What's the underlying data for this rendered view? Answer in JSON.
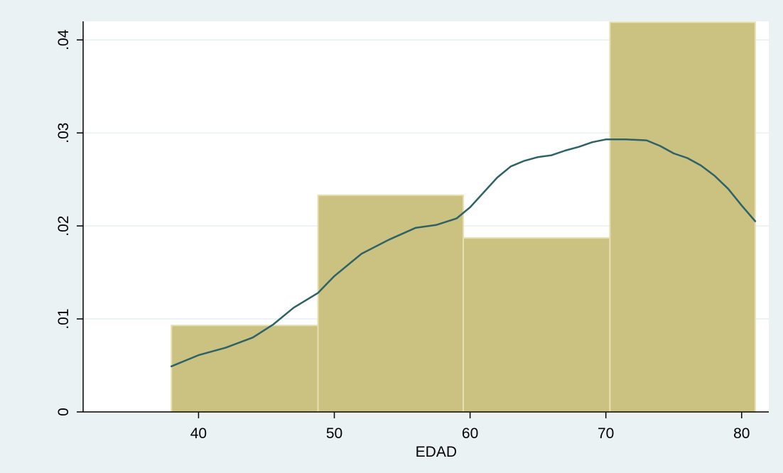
{
  "chart_data": {
    "type": "bar",
    "title": "",
    "xlabel": "EDAD",
    "ylabel": "",
    "xlim": [
      31.5,
      82
    ],
    "ylim": [
      0,
      0.042
    ],
    "grid": true,
    "colors": {
      "background": "#eaf2f3",
      "plot_area": "#ffffff",
      "bar_fill": "#cbc282",
      "bar_edge": "#e6dfb3",
      "density_line": "#2e6266",
      "grid": "#e6eff1"
    },
    "x_ticks": [
      {
        "value": 40,
        "label": "40"
      },
      {
        "value": 50,
        "label": "50"
      },
      {
        "value": 60,
        "label": "60"
      },
      {
        "value": 70,
        "label": "70"
      },
      {
        "value": 80,
        "label": "80"
      }
    ],
    "y_ticks": [
      {
        "value": 0,
        "label": "0"
      },
      {
        "value": 0.01,
        "label": ".01"
      },
      {
        "value": 0.02,
        "label": ".02"
      },
      {
        "value": 0.03,
        "label": ".03"
      },
      {
        "value": 0.04,
        "label": ".04"
      }
    ],
    "bins": [
      {
        "start": 38.0,
        "end": 48.8,
        "density": 0.0093
      },
      {
        "start": 48.8,
        "end": 59.5,
        "density": 0.0233
      },
      {
        "start": 59.5,
        "end": 70.3,
        "density": 0.0187
      },
      {
        "start": 70.3,
        "end": 81.0,
        "density": 0.0419
      }
    ],
    "density_curve": {
      "x": [
        38.0,
        40.0,
        42.0,
        44.0,
        45.5,
        47.0,
        48.8,
        50.0,
        52.0,
        54.0,
        56.0,
        57.5,
        59.0,
        60.0,
        62.0,
        63.0,
        64.0,
        65.0,
        66.0,
        67.0,
        68.0,
        69.0,
        70.0,
        71.5,
        73.0,
        74.0,
        75.0,
        76.0,
        77.0,
        78.0,
        79.0,
        80.0,
        81.0
      ],
      "y": [
        0.0049,
        0.0061,
        0.0069,
        0.008,
        0.0094,
        0.0112,
        0.0128,
        0.0146,
        0.017,
        0.0185,
        0.0198,
        0.0201,
        0.0208,
        0.022,
        0.0252,
        0.0264,
        0.027,
        0.0274,
        0.0276,
        0.0281,
        0.0285,
        0.029,
        0.0293,
        0.0293,
        0.0292,
        0.0286,
        0.0278,
        0.0273,
        0.0265,
        0.0254,
        0.024,
        0.0222,
        0.0205
      ]
    }
  }
}
